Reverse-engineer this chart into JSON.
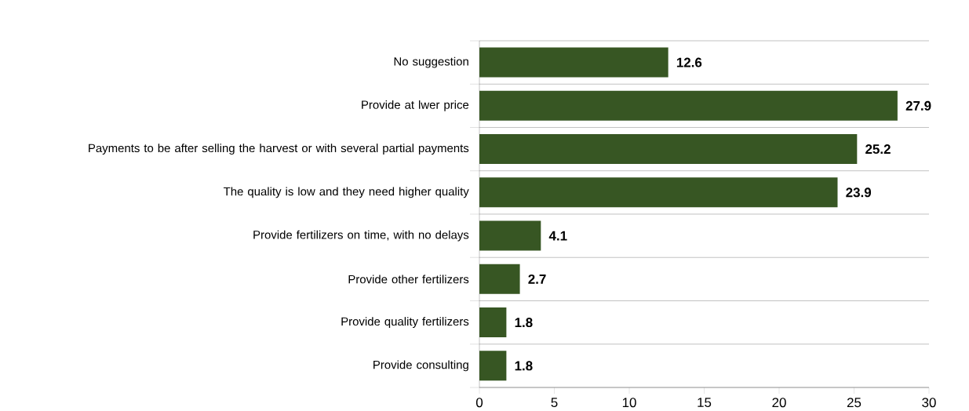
{
  "chart_data": {
    "type": "bar",
    "orientation": "horizontal",
    "categories": [
      "No suggestion",
      "Provide at lwer price",
      "Payments to be after selling the harvest or with several partial payments",
      "The quality is low and they need higher quality",
      "Provide fertilizers on time, with no delays",
      "Provide other fertilizers",
      "Provide quality fertilizers",
      "Provide consulting"
    ],
    "values": [
      12.6,
      27.9,
      25.2,
      23.9,
      4.1,
      2.7,
      1.8,
      1.8
    ],
    "color": "#375623",
    "xlim": [
      0,
      30
    ],
    "xticks": [
      0,
      5,
      10,
      15,
      20,
      25,
      30
    ],
    "grid": "y",
    "data_labels": true
  }
}
